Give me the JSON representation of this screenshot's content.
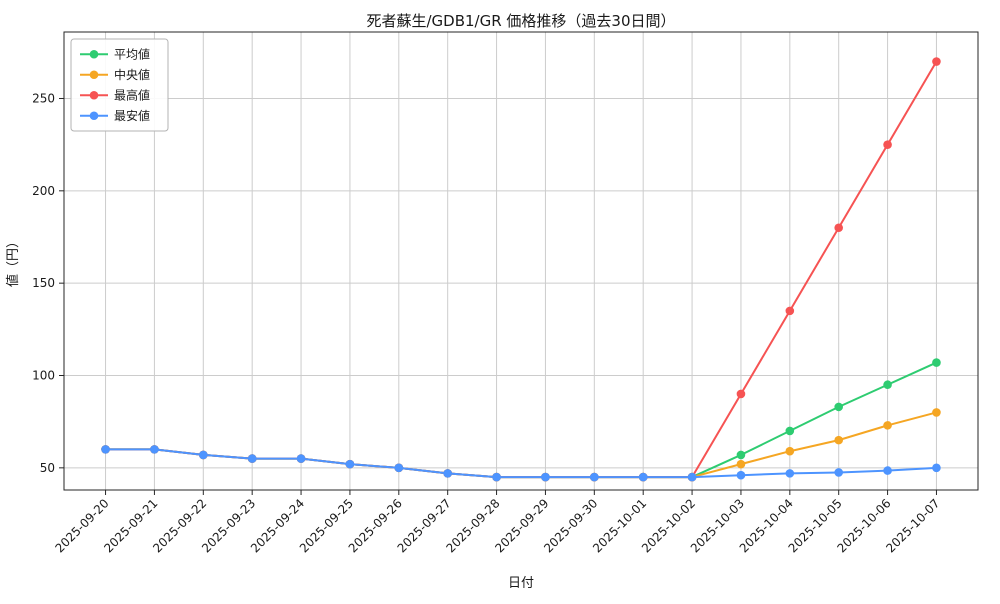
{
  "chart_data": {
    "type": "line",
    "title": "死者蘇生/GDB1/GR 価格推移（過去30日間）",
    "xlabel": "日付",
    "ylabel": "値（円）",
    "categories": [
      "2025-09-20",
      "2025-09-21",
      "2025-09-22",
      "2025-09-23",
      "2025-09-24",
      "2025-09-25",
      "2025-09-26",
      "2025-09-27",
      "2025-09-28",
      "2025-09-29",
      "2025-09-30",
      "2025-10-01",
      "2025-10-02",
      "2025-10-03",
      "2025-10-04",
      "2025-10-05",
      "2025-10-06",
      "2025-10-07"
    ],
    "series": [
      {
        "key": "average",
        "name": "平均値",
        "color": "#2ecc71",
        "values": [
          60,
          60,
          57,
          55,
          55,
          52,
          50,
          47,
          45,
          45,
          45,
          45,
          45,
          57,
          70,
          83,
          95,
          107
        ]
      },
      {
        "key": "median",
        "name": "中央値",
        "color": "#f5a623",
        "values": [
          60,
          60,
          57,
          55,
          55,
          52,
          50,
          47,
          45,
          45,
          45,
          45,
          45,
          52,
          59,
          65,
          73,
          80
        ]
      },
      {
        "key": "max",
        "name": "最高値",
        "color": "#f65353",
        "values": [
          60,
          60,
          57,
          55,
          55,
          52,
          50,
          47,
          45,
          45,
          45,
          45,
          45,
          90,
          135,
          180,
          225,
          270
        ]
      },
      {
        "key": "min",
        "name": "最安値",
        "color": "#4d94ff",
        "values": [
          60,
          60,
          57,
          55,
          55,
          52,
          50,
          47,
          45,
          45,
          45,
          45,
          45,
          46,
          47,
          47.5,
          48.5,
          50
        ]
      }
    ],
    "yticks": [
      50,
      100,
      150,
      200,
      250
    ],
    "ylim": [
      38,
      286
    ],
    "grid": true,
    "grid_color": "#cccccc",
    "axis_color": "#262626",
    "background": "#ffffff",
    "legend_position": "upper left"
  }
}
